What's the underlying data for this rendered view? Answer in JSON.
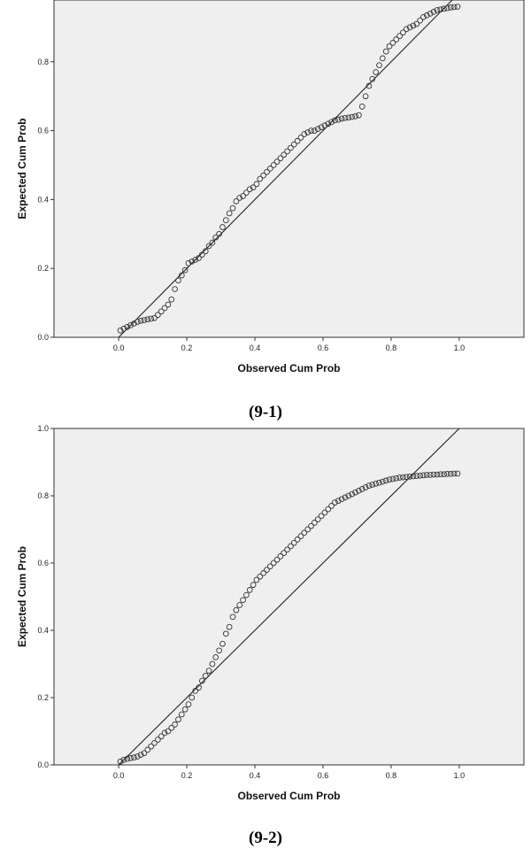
{
  "chart_data": [
    {
      "type": "scatter",
      "caption": "(9-1)",
      "title": "",
      "xlabel": "Observed Cum Prob",
      "ylabel": "Expected Cum Prob",
      "xlim": [
        -0.19,
        1.19
      ],
      "ylim": [
        0.0,
        1.0
      ],
      "x_ticks": [
        "0.0",
        "0.2",
        "0.4",
        "0.6",
        "0.8",
        "1.0"
      ],
      "y_ticks": [
        "0.0",
        "0.2",
        "0.4",
        "0.6",
        "0.8"
      ],
      "reference_line": [
        [
          0.0,
          0.0
        ],
        [
          1.0,
          1.0
        ]
      ],
      "background": "#efefef",
      "series": [
        {
          "x": [
            0.005,
            0.015,
            0.025,
            0.035,
            0.045,
            0.055,
            0.065,
            0.075,
            0.085,
            0.095,
            0.105,
            0.115,
            0.125,
            0.135,
            0.145,
            0.155,
            0.165,
            0.175,
            0.185,
            0.195,
            0.205,
            0.215,
            0.225,
            0.235,
            0.245,
            0.255,
            0.265,
            0.275,
            0.285,
            0.295,
            0.305,
            0.315,
            0.325,
            0.335,
            0.345,
            0.355,
            0.365,
            0.375,
            0.385,
            0.395,
            0.405,
            0.415,
            0.425,
            0.435,
            0.445,
            0.455,
            0.465,
            0.475,
            0.485,
            0.495,
            0.505,
            0.515,
            0.525,
            0.535,
            0.545,
            0.555,
            0.565,
            0.575,
            0.585,
            0.595,
            0.605,
            0.615,
            0.625,
            0.635,
            0.645,
            0.655,
            0.665,
            0.675,
            0.685,
            0.695,
            0.705,
            0.715,
            0.725,
            0.735,
            0.745,
            0.755,
            0.765,
            0.775,
            0.785,
            0.795,
            0.805,
            0.815,
            0.825,
            0.835,
            0.845,
            0.855,
            0.865,
            0.875,
            0.885,
            0.895,
            0.905,
            0.915,
            0.925,
            0.935,
            0.945,
            0.955,
            0.965,
            0.975,
            0.985,
            0.995
          ],
          "y": [
            0.02,
            0.025,
            0.03,
            0.035,
            0.04,
            0.045,
            0.048,
            0.05,
            0.052,
            0.054,
            0.056,
            0.065,
            0.075,
            0.085,
            0.095,
            0.11,
            0.14,
            0.165,
            0.18,
            0.195,
            0.215,
            0.22,
            0.225,
            0.23,
            0.24,
            0.25,
            0.265,
            0.275,
            0.29,
            0.3,
            0.32,
            0.34,
            0.36,
            0.375,
            0.395,
            0.405,
            0.41,
            0.42,
            0.43,
            0.435,
            0.445,
            0.46,
            0.47,
            0.48,
            0.49,
            0.5,
            0.51,
            0.52,
            0.53,
            0.54,
            0.55,
            0.56,
            0.57,
            0.58,
            0.59,
            0.595,
            0.6,
            0.6,
            0.605,
            0.61,
            0.615,
            0.62,
            0.625,
            0.63,
            0.632,
            0.635,
            0.637,
            0.638,
            0.64,
            0.642,
            0.645,
            0.67,
            0.7,
            0.73,
            0.75,
            0.77,
            0.79,
            0.81,
            0.83,
            0.845,
            0.855,
            0.865,
            0.875,
            0.885,
            0.895,
            0.9,
            0.905,
            0.91,
            0.92,
            0.93,
            0.935,
            0.94,
            0.945,
            0.95,
            0.952,
            0.954,
            0.956,
            0.958,
            0.959,
            0.96
          ]
        }
      ]
    },
    {
      "type": "scatter",
      "caption": "(9-2)",
      "title": "",
      "xlabel": "Observed Cum Prob",
      "ylabel": "Expected Cum Prob",
      "xlim": [
        -0.19,
        1.19
      ],
      "ylim": [
        0.0,
        1.0
      ],
      "x_ticks": [
        "0.0",
        "0.2",
        "0.4",
        "0.6",
        "0.8",
        "1.0"
      ],
      "y_ticks": [
        "0.0",
        "0.2",
        "0.4",
        "0.6",
        "0.8",
        "1.0"
      ],
      "reference_line": [
        [
          0.0,
          0.0
        ],
        [
          1.0,
          1.0
        ]
      ],
      "background": "#efefef",
      "series": [
        {
          "x": [
            0.005,
            0.015,
            0.025,
            0.035,
            0.045,
            0.055,
            0.065,
            0.075,
            0.085,
            0.095,
            0.105,
            0.115,
            0.125,
            0.135,
            0.145,
            0.155,
            0.165,
            0.175,
            0.185,
            0.195,
            0.205,
            0.215,
            0.225,
            0.235,
            0.245,
            0.255,
            0.265,
            0.275,
            0.285,
            0.295,
            0.305,
            0.315,
            0.325,
            0.335,
            0.345,
            0.355,
            0.365,
            0.375,
            0.385,
            0.395,
            0.405,
            0.415,
            0.425,
            0.435,
            0.445,
            0.455,
            0.465,
            0.475,
            0.485,
            0.495,
            0.505,
            0.515,
            0.525,
            0.535,
            0.545,
            0.555,
            0.565,
            0.575,
            0.585,
            0.595,
            0.605,
            0.615,
            0.625,
            0.635,
            0.645,
            0.655,
            0.665,
            0.675,
            0.685,
            0.695,
            0.705,
            0.715,
            0.725,
            0.735,
            0.745,
            0.755,
            0.765,
            0.775,
            0.785,
            0.795,
            0.805,
            0.815,
            0.825,
            0.835,
            0.845,
            0.855,
            0.865,
            0.875,
            0.885,
            0.895,
            0.905,
            0.915,
            0.925,
            0.935,
            0.945,
            0.955,
            0.965,
            0.975,
            0.985,
            0.995
          ],
          "y": [
            0.01,
            0.015,
            0.018,
            0.02,
            0.022,
            0.025,
            0.03,
            0.035,
            0.045,
            0.055,
            0.065,
            0.075,
            0.085,
            0.095,
            0.1,
            0.11,
            0.12,
            0.135,
            0.15,
            0.165,
            0.18,
            0.2,
            0.22,
            0.23,
            0.25,
            0.265,
            0.28,
            0.3,
            0.32,
            0.34,
            0.36,
            0.39,
            0.41,
            0.44,
            0.46,
            0.475,
            0.49,
            0.505,
            0.52,
            0.535,
            0.55,
            0.56,
            0.57,
            0.58,
            0.59,
            0.6,
            0.61,
            0.62,
            0.63,
            0.64,
            0.65,
            0.66,
            0.67,
            0.68,
            0.69,
            0.7,
            0.71,
            0.72,
            0.73,
            0.74,
            0.75,
            0.76,
            0.77,
            0.78,
            0.785,
            0.79,
            0.795,
            0.8,
            0.805,
            0.81,
            0.815,
            0.82,
            0.825,
            0.83,
            0.833,
            0.836,
            0.839,
            0.842,
            0.845,
            0.848,
            0.85,
            0.852,
            0.854,
            0.855,
            0.856,
            0.857,
            0.858,
            0.859,
            0.86,
            0.861,
            0.862,
            0.862,
            0.863,
            0.863,
            0.864,
            0.864,
            0.865,
            0.865,
            0.866,
            0.866
          ]
        }
      ]
    }
  ]
}
